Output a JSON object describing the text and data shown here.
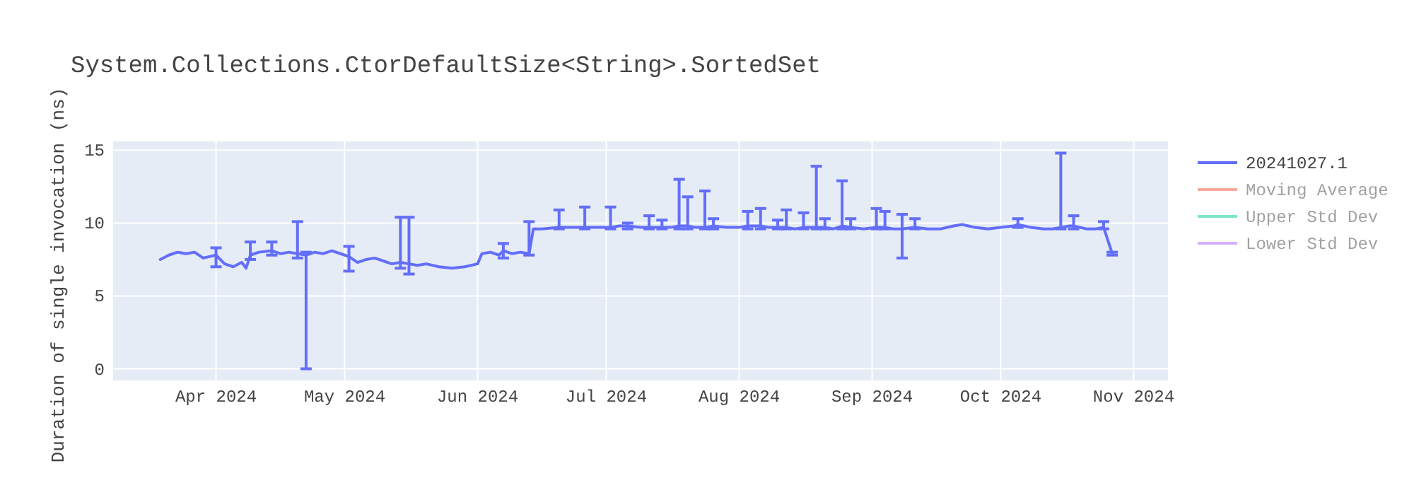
{
  "chart_data": {
    "type": "line",
    "title": "System.Collections.CtorDefaultSize<String>.SortedSet",
    "ylabel": "Duration of single invocation (ns)",
    "xlim": [
      "2024-03-08",
      "2024-11-09"
    ],
    "ylim": [
      -0.8,
      15.6
    ],
    "xticks": [
      {
        "value": "2024-04-01",
        "label": "Apr 2024"
      },
      {
        "value": "2024-05-01",
        "label": "May 2024"
      },
      {
        "value": "2024-06-01",
        "label": "Jun 2024"
      },
      {
        "value": "2024-07-01",
        "label": "Jul 2024"
      },
      {
        "value": "2024-08-01",
        "label": "Aug 2024"
      },
      {
        "value": "2024-09-01",
        "label": "Sep 2024"
      },
      {
        "value": "2024-10-01",
        "label": "Oct 2024"
      },
      {
        "value": "2024-11-01",
        "label": "Nov 2024"
      }
    ],
    "yticks": [
      0,
      5,
      10,
      15
    ],
    "grid": true,
    "legend": "top right",
    "marker": "none",
    "line_style": "solid",
    "x": [
      "2024-03-19",
      "2024-03-21",
      "2024-03-23",
      "2024-03-25",
      "2024-03-27",
      "2024-03-29",
      "2024-04-01",
      "2024-04-03",
      "2024-04-05",
      "2024-04-07",
      "2024-04-08",
      "2024-04-09",
      "2024-04-11",
      "2024-04-14",
      "2024-04-16",
      "2024-04-18",
      "2024-04-20",
      "2024-04-22",
      "2024-04-24",
      "2024-04-26",
      "2024-04-28",
      "2024-05-01",
      "2024-05-02",
      "2024-05-04",
      "2024-05-06",
      "2024-05-08",
      "2024-05-10",
      "2024-05-12",
      "2024-05-14",
      "2024-05-16",
      "2024-05-18",
      "2024-05-20",
      "2024-05-23",
      "2024-05-26",
      "2024-05-29",
      "2024-06-01",
      "2024-06-02",
      "2024-06-04",
      "2024-06-06",
      "2024-06-07",
      "2024-06-09",
      "2024-06-11",
      "2024-06-13",
      "2024-06-14",
      "2024-06-16",
      "2024-06-20",
      "2024-06-23",
      "2024-06-26",
      "2024-06-29",
      "2024-07-02",
      "2024-07-04",
      "2024-07-06",
      "2024-07-09",
      "2024-07-11",
      "2024-07-14",
      "2024-07-16",
      "2024-07-18",
      "2024-07-20",
      "2024-07-22",
      "2024-07-24",
      "2024-07-26",
      "2024-07-29",
      "2024-08-01",
      "2024-08-03",
      "2024-08-06",
      "2024-08-08",
      "2024-08-10",
      "2024-08-12",
      "2024-08-14",
      "2024-08-16",
      "2024-08-19",
      "2024-08-21",
      "2024-08-23",
      "2024-08-25",
      "2024-08-27",
      "2024-08-30",
      "2024-09-02",
      "2024-09-04",
      "2024-09-06",
      "2024-09-08",
      "2024-09-11",
      "2024-09-14",
      "2024-09-17",
      "2024-09-20",
      "2024-09-22",
      "2024-09-25",
      "2024-09-28",
      "2024-10-01",
      "2024-10-04",
      "2024-10-05",
      "2024-10-08",
      "2024-10-11",
      "2024-10-13",
      "2024-10-15",
      "2024-10-17",
      "2024-10-18",
      "2024-10-21",
      "2024-10-23",
      "2024-10-25",
      "2024-10-27"
    ],
    "series": [
      {
        "name": "20241027.1",
        "color": "#636efa",
        "values": [
          7.5,
          7.8,
          8.0,
          7.9,
          8.0,
          7.6,
          7.8,
          7.2,
          7.0,
          7.3,
          6.9,
          7.8,
          8.0,
          8.1,
          7.9,
          8.0,
          7.9,
          7.8,
          8.0,
          7.9,
          8.1,
          7.8,
          7.7,
          7.3,
          7.5,
          7.6,
          7.4,
          7.2,
          7.3,
          7.2,
          7.1,
          7.2,
          7.0,
          6.9,
          7.0,
          7.2,
          7.9,
          8.0,
          7.8,
          8.1,
          7.9,
          8.0,
          7.9,
          9.6,
          9.6,
          9.7,
          9.7,
          9.7,
          9.7,
          9.7,
          9.8,
          9.8,
          9.7,
          9.7,
          9.7,
          9.7,
          9.8,
          9.8,
          9.7,
          9.7,
          9.8,
          9.7,
          9.7,
          9.8,
          9.8,
          9.7,
          9.7,
          9.7,
          9.6,
          9.7,
          9.7,
          9.7,
          9.6,
          9.8,
          9.7,
          9.6,
          9.7,
          9.7,
          9.6,
          9.6,
          9.7,
          9.6,
          9.6,
          9.8,
          9.9,
          9.7,
          9.6,
          9.7,
          9.8,
          9.9,
          9.7,
          9.6,
          9.6,
          9.7,
          9.8,
          9.8,
          9.6,
          9.6,
          9.7,
          7.9
        ],
        "errors": [
          null,
          null,
          null,
          null,
          null,
          null,
          [
            7.0,
            8.3
          ],
          null,
          null,
          null,
          null,
          [
            7.5,
            8.7
          ],
          null,
          [
            7.8,
            8.7
          ],
          null,
          null,
          [
            7.6,
            10.1
          ],
          [
            0,
            8.0
          ],
          null,
          null,
          null,
          null,
          [
            6.7,
            8.4
          ],
          null,
          null,
          null,
          null,
          null,
          [
            6.9,
            10.4
          ],
          [
            6.5,
            10.4
          ],
          null,
          null,
          null,
          null,
          null,
          null,
          null,
          null,
          null,
          [
            7.6,
            8.6
          ],
          null,
          null,
          [
            7.8,
            10.1
          ],
          null,
          null,
          [
            9.6,
            10.9
          ],
          null,
          [
            9.6,
            11.1
          ],
          null,
          [
            9.6,
            11.1
          ],
          null,
          [
            9.6,
            10.0
          ],
          null,
          [
            9.6,
            10.5
          ],
          [
            9.6,
            10.2
          ],
          null,
          [
            9.6,
            13.0
          ],
          [
            9.6,
            11.8
          ],
          null,
          [
            9.6,
            12.2
          ],
          [
            9.6,
            10.3
          ],
          null,
          null,
          [
            9.6,
            10.8
          ],
          [
            9.6,
            11.0
          ],
          null,
          [
            9.6,
            10.2
          ],
          [
            9.6,
            10.9
          ],
          null,
          [
            9.6,
            10.7
          ],
          [
            9.6,
            13.9
          ],
          [
            9.6,
            10.3
          ],
          null,
          [
            9.6,
            12.9
          ],
          [
            9.6,
            10.3
          ],
          null,
          [
            9.6,
            11.0
          ],
          [
            9.6,
            10.8
          ],
          null,
          [
            7.6,
            10.6
          ],
          [
            9.6,
            10.3
          ],
          null,
          null,
          null,
          null,
          null,
          null,
          null,
          null,
          [
            9.7,
            10.3
          ],
          null,
          null,
          null,
          [
            9.6,
            14.8
          ],
          null,
          [
            9.6,
            10.5
          ],
          null,
          null,
          [
            9.6,
            10.1
          ],
          [
            7.8,
            8.0
          ]
        ]
      },
      {
        "name": "Moving Average",
        "color": "#ef553b",
        "values": [
          null,
          null,
          null,
          null,
          null,
          null,
          null,
          null,
          null,
          null,
          null,
          null,
          null,
          null,
          null,
          null,
          null,
          null,
          null,
          null,
          null,
          null,
          null,
          null,
          null,
          null,
          null,
          null,
          null,
          null,
          null,
          null,
          null,
          null,
          null,
          null,
          null,
          null,
          null,
          null,
          null,
          null,
          null,
          null,
          null,
          null,
          null,
          null,
          null,
          null,
          null,
          null,
          null,
          null,
          null,
          null,
          null,
          null,
          null,
          null,
          null,
          null,
          null,
          null,
          null,
          null,
          null,
          null,
          null,
          null,
          null,
          null,
          null,
          null,
          null,
          null,
          null,
          null,
          null,
          null,
          null,
          null,
          null,
          null,
          null,
          null,
          null,
          null,
          null,
          null,
          null,
          null,
          null,
          null,
          null,
          null,
          null,
          null,
          null,
          null
        ]
      },
      {
        "name": "Upper Std Dev",
        "color": "#00cc96",
        "values": [
          null,
          null,
          null,
          null,
          null,
          null,
          null,
          null,
          null,
          null,
          null,
          null,
          null,
          null,
          null,
          null,
          null,
          null,
          null,
          null,
          null,
          null,
          null,
          null,
          null,
          null,
          null,
          null,
          null,
          null,
          null,
          null,
          null,
          null,
          null,
          null,
          null,
          null,
          null,
          null,
          null,
          null,
          null,
          null,
          null,
          null,
          null,
          null,
          null,
          null,
          null,
          null,
          null,
          null,
          null,
          null,
          null,
          null,
          null,
          null,
          null,
          null,
          null,
          null,
          null,
          null,
          null,
          null,
          null,
          null,
          null,
          null,
          null,
          null,
          null,
          null,
          null,
          null,
          null,
          null,
          null,
          null,
          null,
          null,
          null,
          null,
          null,
          null,
          null,
          null,
          null,
          null,
          null,
          null,
          null,
          null,
          null,
          null,
          null,
          null
        ]
      },
      {
        "name": "Lower Std Dev",
        "color": "#ab63fa",
        "values": [
          null,
          null,
          null,
          null,
          null,
          null,
          null,
          null,
          null,
          null,
          null,
          null,
          null,
          null,
          null,
          null,
          null,
          null,
          null,
          null,
          null,
          null,
          null,
          null,
          null,
          null,
          null,
          null,
          null,
          null,
          null,
          null,
          null,
          null,
          null,
          null,
          null,
          null,
          null,
          null,
          null,
          null,
          null,
          null,
          null,
          null,
          null,
          null,
          null,
          null,
          null,
          null,
          null,
          null,
          null,
          null,
          null,
          null,
          null,
          null,
          null,
          null,
          null,
          null,
          null,
          null,
          null,
          null,
          null,
          null,
          null,
          null,
          null,
          null,
          null,
          null,
          null,
          null,
          null,
          null,
          null,
          null,
          null,
          null,
          null,
          null,
          null,
          null,
          null,
          null,
          null,
          null,
          null,
          null,
          null,
          null,
          null,
          null,
          null,
          null
        ]
      }
    ]
  }
}
